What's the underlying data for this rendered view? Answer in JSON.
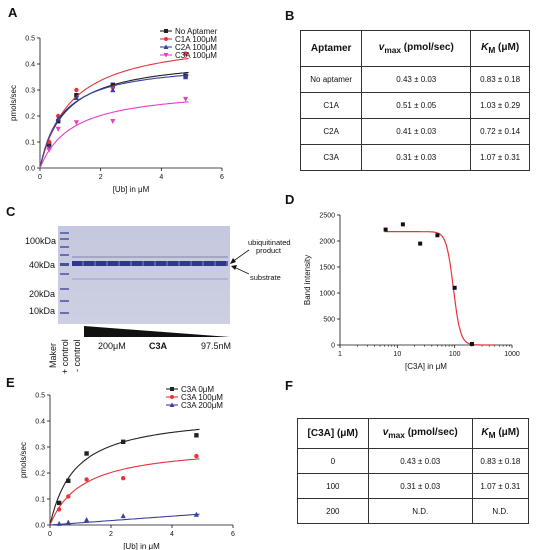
{
  "panels": {
    "A": {
      "letter": "A",
      "chart_data": {
        "type": "scatter",
        "xlabel": "[Ub] in μM",
        "ylabel": "pmols/sec",
        "xlim": [
          0,
          6
        ],
        "ylim": [
          0,
          0.5
        ],
        "xticks": [
          "0",
          "2",
          "4",
          "6"
        ],
        "yticks": [
          "0.0",
          "0.1",
          "0.2",
          "0.3",
          "0.4",
          "0.5"
        ],
        "legend_position": "top-right",
        "series": [
          {
            "name": "No Aptamer",
            "color": "#222222",
            "marker": "square",
            "x": [
              0.3,
              0.6,
              1.2,
              2.4,
              4.8
            ],
            "y": [
              0.09,
              0.18,
              0.28,
              0.32,
              0.355
            ],
            "vmax": 0.43,
            "km": 0.83
          },
          {
            "name": "C1A 100μM",
            "color": "#e8333c",
            "marker": "circle",
            "x": [
              0.3,
              0.6,
              1.2,
              2.4,
              4.8
            ],
            "y": [
              0.1,
              0.2,
              0.3,
              0.31,
              0.44
            ],
            "vmax": 0.51,
            "km": 1.03
          },
          {
            "name": "C2A 100μM",
            "color": "#3a3fa0",
            "marker": "triangle-up",
            "x": [
              0.3,
              0.6,
              1.2,
              2.4,
              4.8
            ],
            "y": [
              0.08,
              0.19,
              0.27,
              0.3,
              0.35
            ],
            "vmax": 0.41,
            "km": 0.72
          },
          {
            "name": "C3A 100μM",
            "color": "#e83fc8",
            "marker": "triangle-down",
            "x": [
              0.3,
              0.6,
              1.2,
              2.4,
              4.8
            ],
            "y": [
              0.07,
              0.15,
              0.175,
              0.18,
              0.265
            ],
            "vmax": 0.31,
            "km": 1.07
          }
        ]
      }
    },
    "B": {
      "letter": "B",
      "headers": [
        "Aptamer",
        "v",
        "max",
        " (pmol/sec)",
        "K",
        "M",
        " (μM)"
      ],
      "rows": [
        [
          "No aptamer",
          "0.43 ± 0.03",
          "0.83 ± 0.18"
        ],
        [
          "C1A",
          "0.51 ± 0.05",
          "1.03 ± 0.29"
        ],
        [
          "C2A",
          "0.41 ± 0.03",
          "0.72 ± 0.14"
        ],
        [
          "C3A",
          "0.31 ± 0.03",
          "1.07 ± 0.31"
        ]
      ]
    },
    "C": {
      "letter": "C",
      "mw_markers": [
        "100kDa",
        "40kDa",
        "20kDa",
        "10kDa"
      ],
      "annotations": {
        "product": "ubiquitinated",
        "product2": "product",
        "substrate": "substrate"
      },
      "lane_labels": [
        "Maker",
        "+ control",
        "- control"
      ],
      "conc_high": "200μM",
      "compound": "C3A",
      "conc_low": "97.5nM"
    },
    "D": {
      "letter": "D",
      "chart_data": {
        "type": "scatter",
        "xlabel": "[C3A] in μM",
        "ylabel": "Band intensity",
        "xscale": "log",
        "xlim": [
          1,
          1000
        ],
        "ylim": [
          0,
          2500
        ],
        "xticks": [
          "1",
          "10",
          "100",
          "1000"
        ],
        "yticks": [
          "0",
          "500",
          "1000",
          "1500",
          "2000",
          "2500"
        ],
        "color": "#e8333c",
        "points": {
          "x": [
            6.25,
            12.5,
            25,
            50,
            100,
            200
          ],
          "y": [
            2220,
            2320,
            1950,
            2110,
            1100,
            20
          ]
        },
        "fit": {
          "top": 2180,
          "bottom": 0,
          "ic50": 95,
          "hill": 7
        }
      }
    },
    "E": {
      "letter": "E",
      "chart_data": {
        "type": "scatter",
        "xlabel": "[Ub] in μM",
        "ylabel": "pmols/sec",
        "xlim": [
          0,
          6
        ],
        "ylim": [
          0,
          0.5
        ],
        "xticks": [
          "0",
          "2",
          "4",
          "6"
        ],
        "yticks": [
          "0.0",
          "0.1",
          "0.2",
          "0.3",
          "0.4",
          "0.5"
        ],
        "legend_position": "top-right",
        "series": [
          {
            "name": "C3A 0μM",
            "color": "#222222",
            "marker": "square",
            "x": [
              0.3,
              0.6,
              1.2,
              2.4,
              4.8
            ],
            "y": [
              0.085,
              0.17,
              0.275,
              0.32,
              0.345
            ],
            "vmax": 0.43,
            "km": 0.83
          },
          {
            "name": "C3A 100μM",
            "color": "#e8333c",
            "marker": "circle",
            "x": [
              0.3,
              0.6,
              1.2,
              2.4,
              4.8
            ],
            "y": [
              0.06,
              0.11,
              0.175,
              0.18,
              0.265
            ],
            "vmax": 0.31,
            "km": 1.07
          },
          {
            "name": "C3A 200μM",
            "color": "#3a3fa0",
            "marker": "triangle-up",
            "x": [
              0.3,
              0.6,
              1.2,
              2.4,
              4.8
            ],
            "y": [
              0.005,
              0.01,
              0.02,
              0.035,
              0.04
            ],
            "linear_slope": 0.0085
          }
        ]
      }
    },
    "F": {
      "letter": "F",
      "headers": [
        "[C3A] (μM)",
        "v",
        "max",
        " (pmol/sec)",
        "K",
        "M",
        " (μM)"
      ],
      "rows": [
        [
          "0",
          "0.43 ± 0.03",
          "0.83 ± 0.18"
        ],
        [
          "100",
          "0.31 ± 0.03",
          "1.07 ± 0.31"
        ],
        [
          "200",
          "N.D.",
          "N.D."
        ]
      ]
    }
  }
}
